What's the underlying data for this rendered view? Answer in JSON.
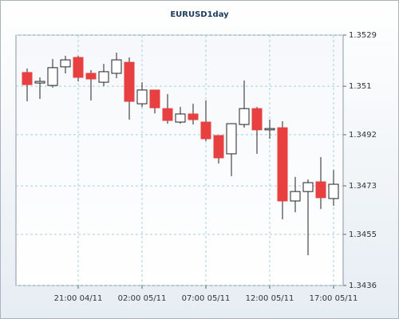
{
  "chart_data": {
    "type": "candlestick",
    "title": "EURUSD1day",
    "categories": [
      null,
      null,
      null,
      null,
      "21:00 04/11",
      null,
      null,
      null,
      null,
      "02:00 05/11",
      null,
      null,
      null,
      null,
      "07:00 05/11",
      null,
      null,
      null,
      null,
      "12:00 05/11",
      null,
      null,
      null,
      null,
      "17:00 05/11"
    ],
    "open": [
      1.35151,
      1.35112,
      1.35103,
      1.35172,
      1.35207,
      1.35148,
      1.35115,
      1.35148,
      1.35189,
      1.35035,
      1.35086,
      1.35017,
      1.34967,
      1.34997,
      1.34967,
      1.34917,
      1.34849,
      1.34958,
      1.35017,
      1.34938,
      1.34946,
      1.34674,
      1.34709,
      1.34745,
      1.34683
    ],
    "high": [
      1.35166,
      1.35133,
      1.35201,
      1.35213,
      1.35213,
      1.3516,
      1.35183,
      1.35225,
      1.35207,
      1.35115,
      1.35086,
      1.35071,
      1.35023,
      1.35035,
      1.35047,
      1.34917,
      1.34961,
      1.35121,
      1.35023,
      1.34976,
      1.3497,
      1.34763,
      1.34754,
      1.34837,
      1.34789
    ],
    "low": [
      1.35044,
      1.35053,
      1.35095,
      1.35148,
      1.35118,
      1.35047,
      1.351,
      1.3513,
      1.34976,
      1.35023,
      1.34999,
      1.34961,
      1.34961,
      1.34958,
      1.34896,
      1.34813,
      1.34766,
      1.34946,
      1.34849,
      1.34905,
      1.34606,
      1.34632,
      1.34472,
      1.34644,
      1.34656
    ],
    "close": [
      1.35106,
      1.35118,
      1.35169,
      1.35198,
      1.35133,
      1.35127,
      1.35154,
      1.35198,
      1.35044,
      1.35086,
      1.3502,
      1.34973,
      1.34997,
      1.34976,
      1.34905,
      1.34834,
      1.34961,
      1.35017,
      1.34938,
      1.34943,
      1.34674,
      1.34709,
      1.34742,
      1.34686,
      1.34736
    ],
    "up_color": "#ffffff",
    "down_color": "#e84040",
    "ylim": [
      1.3436,
      1.3529
    ],
    "yticks": [
      1.3436,
      1.3455,
      1.3473,
      1.3492,
      1.351,
      1.3529
    ],
    "grid": true
  }
}
